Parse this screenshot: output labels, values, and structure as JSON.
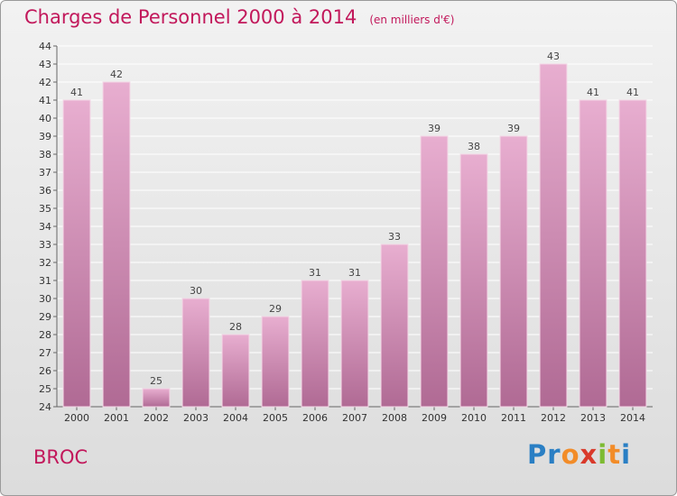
{
  "title": "Charges de Personnel 2000 à 2014",
  "unit": "(en milliers d'€)",
  "location": "BROC",
  "logo": {
    "letters": [
      "P",
      "r",
      "o",
      "x",
      "i",
      "t",
      "i"
    ],
    "colors": [
      "#2a7fc4",
      "#2a7fc4",
      "#f28c28",
      "#d93a2b",
      "#7dbb32",
      "#f28c28",
      "#2a7fc4"
    ]
  },
  "colors": {
    "bar_light": "#e8aed0",
    "bar_dark": "#b06a94",
    "title": "#c2185b"
  },
  "chart_data": {
    "type": "bar",
    "categories": [
      "2000",
      "2001",
      "2002",
      "2003",
      "2004",
      "2005",
      "2006",
      "2007",
      "2008",
      "2009",
      "2010",
      "2011",
      "2012",
      "2013",
      "2014"
    ],
    "values": [
      41,
      42,
      25,
      30,
      28,
      29,
      31,
      31,
      33,
      39,
      38,
      39,
      43,
      41,
      41
    ],
    "ylim": [
      24,
      44
    ],
    "yticks": [
      24,
      25,
      26,
      27,
      28,
      29,
      30,
      31,
      32,
      33,
      34,
      35,
      36,
      37,
      38,
      39,
      40,
      41,
      42,
      43,
      44
    ],
    "grid": true,
    "xlabel": "",
    "ylabel": ""
  }
}
